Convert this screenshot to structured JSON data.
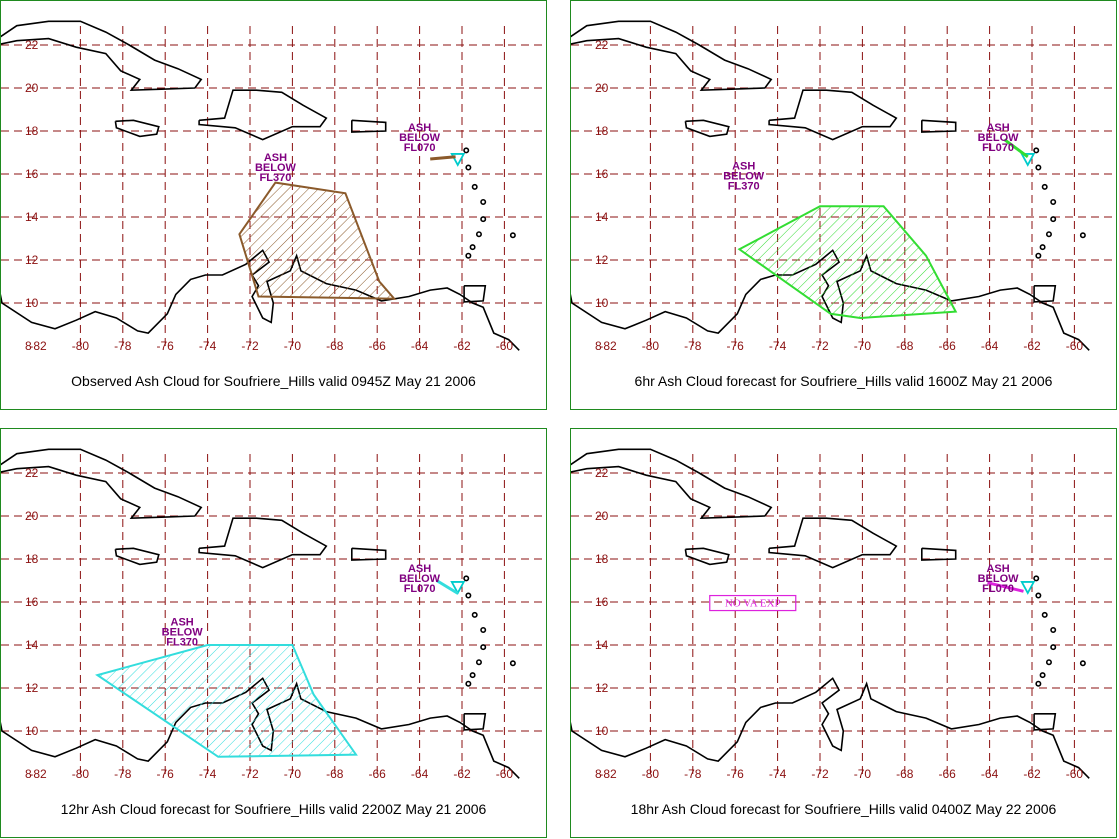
{
  "colors": {
    "grid": "#8b1010",
    "border": "#1f8a1f",
    "label": "#800080",
    "ticks": "#8b1010",
    "coast": "#000000"
  },
  "axis": {
    "lat_labels": [
      "22",
      "20",
      "18",
      "16",
      "14",
      "12",
      "10",
      "8"
    ],
    "lon_labels": [
      "-82",
      "-80",
      "-78",
      "-76",
      "-74",
      "-72",
      "-70",
      "-68",
      "-66",
      "-64",
      "-62",
      "-60"
    ]
  },
  "panels": [
    {
      "caption": "Observed Ash Cloud for Soufriere_Hills valid 0945Z May 21 2006",
      "cloud_color": "#8b5a2b",
      "high_label": [
        "ASH",
        "BELOW",
        "FL370"
      ],
      "low_label": [
        "ASH",
        "BELOW",
        "FL070"
      ]
    },
    {
      "caption": "6hr Ash Cloud forecast for Soufriere_Hills valid 1600Z May 21 2006",
      "cloud_color": "#33dd33",
      "high_label": [
        "ASH",
        "BELOW",
        "FL370"
      ],
      "low_label": [
        "ASH",
        "BELOW",
        "FL070"
      ]
    },
    {
      "caption": "12hr Ash Cloud forecast for Soufriere_Hills valid 2200Z May 21 2006",
      "cloud_color": "#33dddd",
      "high_label": [
        "ASH",
        "BELOW",
        "FL370"
      ],
      "low_label": [
        "ASH",
        "BELOW",
        "FL070"
      ]
    },
    {
      "caption": "18hr Ash Cloud forecast for Soufriere_Hills valid 0400Z May 22 2006",
      "cloud_color": "#dd22dd",
      "low_label": [
        "ASH",
        "BELOW",
        "FL070"
      ],
      "no_va_label": "NO VA EXP"
    }
  ]
}
